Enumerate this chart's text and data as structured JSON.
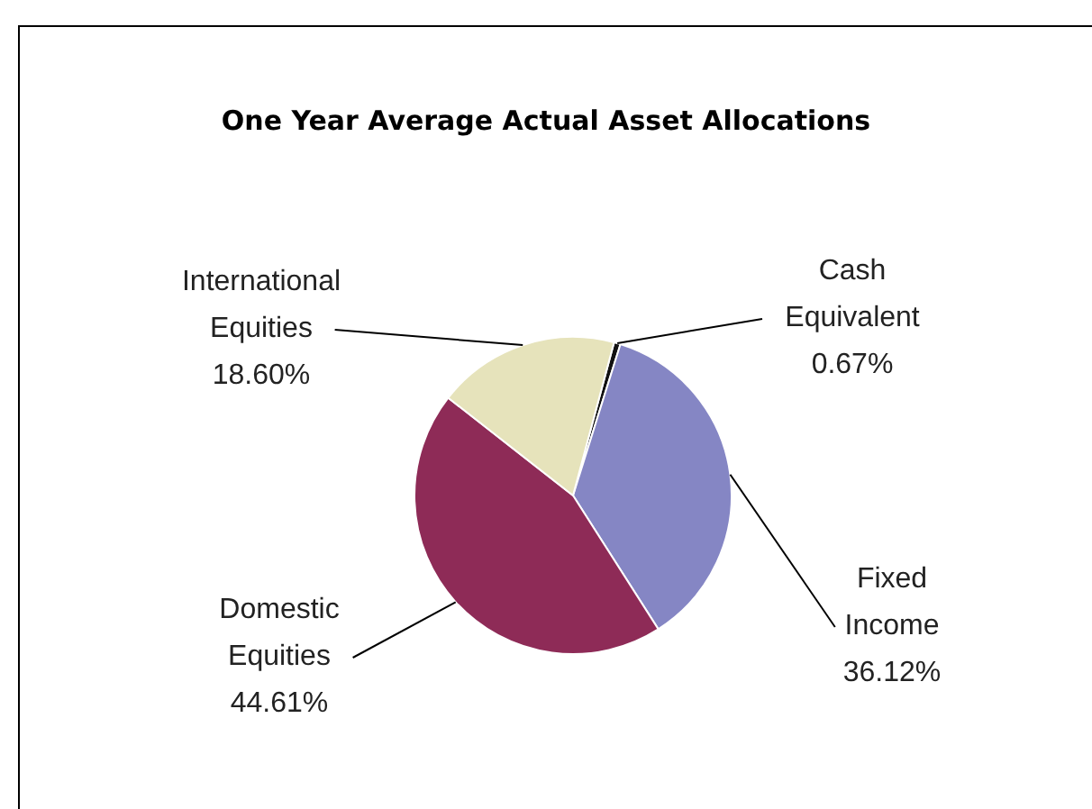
{
  "chart_data": {
    "type": "pie",
    "title": "One Year Average Actual Asset Allocations",
    "categories": [
      "Cash Equivalent",
      "Fixed Income",
      "Domestic Equities",
      "International Equities"
    ],
    "values": [
      0.67,
      36.12,
      44.61,
      18.6
    ],
    "value_labels": [
      "0.67%",
      "36.12%",
      "44.61%",
      "18.60%"
    ],
    "colors": [
      "#111111",
      "#8586c4",
      "#8e2b57",
      "#e6e3bb"
    ]
  }
}
